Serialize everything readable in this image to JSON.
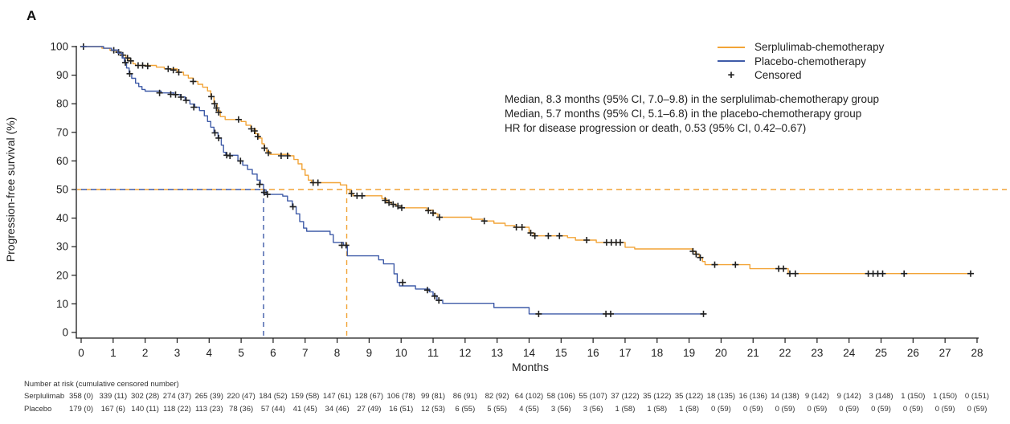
{
  "panel_label": "A",
  "colors": {
    "serplulimab": "#F2A437",
    "placebo": "#3F5BA8",
    "censor": "#1f1f1f",
    "axis": "#1a1a1a"
  },
  "legend": {
    "items": [
      {
        "label": "Serplulimab-chemotherapy",
        "marker": "line",
        "color_key": "serplulimab"
      },
      {
        "label": "Placebo-chemotherapy",
        "marker": "line",
        "color_key": "placebo"
      },
      {
        "label": "Censored",
        "marker": "plus",
        "plus_symbol": "+"
      }
    ]
  },
  "annotations": [
    "Median, 8.3 months (95% CI, 7.0–9.8) in the serplulimab-chemotherapy group",
    "Median, 5.7 months (95% CI, 5.1–6.8) in the placebo-chemotherapy group",
    "HR for disease progression or death, 0.53 (95% CI, 0.42–0.67)"
  ],
  "chart_data": {
    "type": "line",
    "subtype": "kaplan-meier-step",
    "xlabel": "Months",
    "ylabel": "Progression-free survival (%)",
    "xlim": [
      0,
      28
    ],
    "ylim": [
      0,
      100
    ],
    "xticks": [
      0,
      1,
      2,
      3,
      4,
      5,
      6,
      7,
      8,
      9,
      10,
      11,
      12,
      13,
      14,
      15,
      16,
      17,
      18,
      19,
      20,
      21,
      22,
      23,
      24,
      25,
      26,
      27,
      28
    ],
    "yticks": [
      0,
      10,
      20,
      30,
      40,
      50,
      60,
      70,
      80,
      90,
      100
    ],
    "grid": false,
    "legend_position": "top-right",
    "median_lines": {
      "reference_percent": 50,
      "serplulimab_median_months": 8.3,
      "placebo_median_months": 5.7
    },
    "series": [
      {
        "name": "Serplulimab-chemotherapy",
        "color_key": "serplulimab",
        "steps": [
          [
            0,
            100
          ],
          [
            0.65,
            99.4
          ],
          [
            0.9,
            98.7
          ],
          [
            1.1,
            98
          ],
          [
            1.25,
            97
          ],
          [
            1.4,
            96
          ],
          [
            1.5,
            95
          ],
          [
            1.62,
            94
          ],
          [
            1.7,
            93.4
          ],
          [
            2.35,
            92.8
          ],
          [
            2.6,
            92.2
          ],
          [
            3.0,
            91
          ],
          [
            3.2,
            90
          ],
          [
            3.35,
            89
          ],
          [
            3.5,
            87.8
          ],
          [
            3.65,
            86.8
          ],
          [
            3.8,
            85.8
          ],
          [
            3.95,
            84.5
          ],
          [
            4.05,
            82.5
          ],
          [
            4.15,
            80
          ],
          [
            4.25,
            77.5
          ],
          [
            4.35,
            75.5
          ],
          [
            4.5,
            74.5
          ],
          [
            5.0,
            73.8
          ],
          [
            5.15,
            72.5
          ],
          [
            5.3,
            71.2
          ],
          [
            5.45,
            69.5
          ],
          [
            5.55,
            68
          ],
          [
            5.65,
            66
          ],
          [
            5.72,
            64.5
          ],
          [
            5.8,
            63.3
          ],
          [
            5.9,
            62.3
          ],
          [
            6.5,
            61.8
          ],
          [
            6.65,
            60.5
          ],
          [
            6.78,
            59
          ],
          [
            6.9,
            57
          ],
          [
            7.0,
            55
          ],
          [
            7.1,
            53.3
          ],
          [
            7.2,
            52.4
          ],
          [
            8.1,
            51.6
          ],
          [
            8.3,
            50
          ],
          [
            8.4,
            48.6
          ],
          [
            8.5,
            47.8
          ],
          [
            9.4,
            46.8
          ],
          [
            9.55,
            45.6
          ],
          [
            9.7,
            44.8
          ],
          [
            9.85,
            44.2
          ],
          [
            10.0,
            43.6
          ],
          [
            10.8,
            42.8
          ],
          [
            11.0,
            41.5
          ],
          [
            11.15,
            40.3
          ],
          [
            12.2,
            39.6
          ],
          [
            12.55,
            39
          ],
          [
            12.9,
            38.2
          ],
          [
            13.25,
            37.4
          ],
          [
            13.55,
            36.8
          ],
          [
            14.0,
            34.8
          ],
          [
            14.15,
            33.8
          ],
          [
            15.2,
            33.2
          ],
          [
            15.45,
            32.3
          ],
          [
            16.1,
            31.5
          ],
          [
            17.0,
            29.8
          ],
          [
            17.3,
            29.2
          ],
          [
            19.1,
            28.4
          ],
          [
            19.2,
            27.4
          ],
          [
            19.32,
            26.2
          ],
          [
            19.42,
            24.8
          ],
          [
            19.5,
            23.7
          ],
          [
            20.9,
            22.3
          ],
          [
            22.1,
            20.6
          ],
          [
            27.9,
            20.6
          ]
        ],
        "censors": [
          [
            0.07,
            100
          ],
          [
            1.02,
            98.7
          ],
          [
            1.17,
            98
          ],
          [
            1.3,
            97
          ],
          [
            1.45,
            96
          ],
          [
            1.55,
            95
          ],
          [
            1.78,
            93.4
          ],
          [
            1.92,
            93.4
          ],
          [
            2.08,
            93.2
          ],
          [
            2.72,
            92.2
          ],
          [
            2.88,
            91.8
          ],
          [
            3.05,
            91
          ],
          [
            3.5,
            87.8
          ],
          [
            4.07,
            82.5
          ],
          [
            4.17,
            80
          ],
          [
            4.23,
            78.5
          ],
          [
            4.3,
            77
          ],
          [
            4.92,
            74.5
          ],
          [
            5.32,
            71.2
          ],
          [
            5.42,
            70.5
          ],
          [
            5.52,
            68.5
          ],
          [
            5.73,
            64.5
          ],
          [
            5.85,
            62.8
          ],
          [
            6.25,
            61.8
          ],
          [
            6.45,
            61.8
          ],
          [
            7.25,
            52.4
          ],
          [
            7.4,
            52.4
          ],
          [
            8.45,
            48.6
          ],
          [
            8.62,
            47.8
          ],
          [
            8.78,
            47.8
          ],
          [
            9.5,
            46.2
          ],
          [
            9.62,
            45.4
          ],
          [
            9.75,
            44.8
          ],
          [
            9.9,
            44.2
          ],
          [
            10.02,
            43.6
          ],
          [
            10.85,
            42.6
          ],
          [
            11.0,
            41.8
          ],
          [
            11.2,
            40.3
          ],
          [
            12.6,
            39
          ],
          [
            13.6,
            36.8
          ],
          [
            13.78,
            36.8
          ],
          [
            14.05,
            34.8
          ],
          [
            14.18,
            33.8
          ],
          [
            14.6,
            33.8
          ],
          [
            14.95,
            33.8
          ],
          [
            15.8,
            32.3
          ],
          [
            16.42,
            31.5
          ],
          [
            16.57,
            31.5
          ],
          [
            16.72,
            31.5
          ],
          [
            16.85,
            31.5
          ],
          [
            19.12,
            28.4
          ],
          [
            19.22,
            27.4
          ],
          [
            19.35,
            26.2
          ],
          [
            19.8,
            23.7
          ],
          [
            20.45,
            23.7
          ],
          [
            21.8,
            22.3
          ],
          [
            21.95,
            22.3
          ],
          [
            22.15,
            20.6
          ],
          [
            22.32,
            20.6
          ],
          [
            24.6,
            20.6
          ],
          [
            24.75,
            20.6
          ],
          [
            24.9,
            20.6
          ],
          [
            25.05,
            20.6
          ],
          [
            25.72,
            20.6
          ],
          [
            27.8,
            20.6
          ]
        ]
      },
      {
        "name": "Placebo-chemotherapy",
        "color_key": "placebo",
        "steps": [
          [
            0,
            100
          ],
          [
            0.7,
            99.4
          ],
          [
            0.95,
            98.8
          ],
          [
            1.15,
            97.7
          ],
          [
            1.28,
            96
          ],
          [
            1.35,
            94.4
          ],
          [
            1.42,
            92.5
          ],
          [
            1.5,
            90.5
          ],
          [
            1.58,
            88.9
          ],
          [
            1.7,
            87.2
          ],
          [
            1.8,
            86
          ],
          [
            1.9,
            85
          ],
          [
            2.0,
            84.4
          ],
          [
            2.5,
            83.8
          ],
          [
            2.9,
            83.2
          ],
          [
            3.1,
            82.4
          ],
          [
            3.25,
            81.2
          ],
          [
            3.4,
            79.9
          ],
          [
            3.55,
            78.8
          ],
          [
            3.7,
            77.6
          ],
          [
            3.85,
            75.8
          ],
          [
            3.95,
            73.8
          ],
          [
            4.05,
            71.8
          ],
          [
            4.15,
            69.9
          ],
          [
            4.28,
            68
          ],
          [
            4.38,
            65.5
          ],
          [
            4.45,
            63
          ],
          [
            4.52,
            62
          ],
          [
            4.9,
            60
          ],
          [
            5.05,
            58.5
          ],
          [
            5.2,
            57
          ],
          [
            5.35,
            55.4
          ],
          [
            5.5,
            53.3
          ],
          [
            5.6,
            51.8
          ],
          [
            5.7,
            49.9
          ],
          [
            5.78,
            48.3
          ],
          [
            6.3,
            47.7
          ],
          [
            6.45,
            46
          ],
          [
            6.6,
            44
          ],
          [
            6.72,
            41.5
          ],
          [
            6.83,
            38.8
          ],
          [
            6.95,
            36.5
          ],
          [
            7.05,
            35.4
          ],
          [
            7.78,
            34.2
          ],
          [
            7.88,
            31.5
          ],
          [
            8.2,
            30.5
          ],
          [
            8.32,
            26.8
          ],
          [
            9.3,
            25.4
          ],
          [
            9.45,
            24
          ],
          [
            9.78,
            20.5
          ],
          [
            9.88,
            17.5
          ],
          [
            9.95,
            16.3
          ],
          [
            10.45,
            15.2
          ],
          [
            10.88,
            14.2
          ],
          [
            11.0,
            12.9
          ],
          [
            11.12,
            11.3
          ],
          [
            11.3,
            10.2
          ],
          [
            12.9,
            8.7
          ],
          [
            14.0,
            6.5
          ],
          [
            19.5,
            6.5
          ]
        ],
        "censors": [
          [
            1.38,
            94.4
          ],
          [
            1.52,
            90.5
          ],
          [
            2.45,
            83.8
          ],
          [
            2.8,
            83.3
          ],
          [
            2.95,
            83.2
          ],
          [
            3.12,
            82.3
          ],
          [
            3.28,
            81.2
          ],
          [
            3.52,
            78.8
          ],
          [
            4.18,
            69.8
          ],
          [
            4.3,
            68
          ],
          [
            4.55,
            62
          ],
          [
            4.65,
            61.8
          ],
          [
            4.98,
            60
          ],
          [
            5.58,
            51.8
          ],
          [
            5.72,
            49
          ],
          [
            5.82,
            48.3
          ],
          [
            6.62,
            44
          ],
          [
            8.15,
            30.5
          ],
          [
            8.28,
            30.5
          ],
          [
            10.05,
            17.5
          ],
          [
            10.82,
            14.8
          ],
          [
            11.05,
            12.7
          ],
          [
            11.18,
            11.2
          ],
          [
            14.3,
            6.5
          ],
          [
            16.4,
            6.5
          ],
          [
            16.55,
            6.5
          ],
          [
            19.45,
            6.5
          ]
        ]
      }
    ]
  },
  "risk_table": {
    "title": "Number at risk (cumulative censored number)",
    "months": [
      0,
      1,
      2,
      3,
      4,
      5,
      6,
      7,
      8,
      9,
      10,
      11,
      12,
      13,
      14,
      15,
      16,
      17,
      18,
      19,
      20,
      21,
      22,
      23,
      24,
      25,
      26,
      27,
      28
    ],
    "rows": [
      {
        "label": "Serplulimab",
        "values": [
          "358 (0)",
          "339 (11)",
          "302 (28)",
          "274 (37)",
          "265 (39)",
          "220 (47)",
          "184 (52)",
          "159 (58)",
          "147 (61)",
          "128 (67)",
          "106 (78)",
          "99 (81)",
          "86 (91)",
          "82 (92)",
          "64 (102)",
          "58 (106)",
          "55 (107)",
          "37 (122)",
          "35 (122)",
          "35 (122)",
          "18 (135)",
          "16 (136)",
          "14 (138)",
          "9 (142)",
          "9 (142)",
          "3 (148)",
          "1 (150)",
          "1 (150)",
          "0 (151)"
        ]
      },
      {
        "label": "Placebo",
        "values": [
          "179 (0)",
          "167 (6)",
          "140 (11)",
          "118 (22)",
          "113 (23)",
          "78 (36)",
          "57 (44)",
          "41 (45)",
          "34 (46)",
          "27 (49)",
          "16 (51)",
          "12 (53)",
          "6 (55)",
          "5 (55)",
          "4 (55)",
          "3 (56)",
          "3 (56)",
          "1 (58)",
          "1 (58)",
          "1 (58)",
          "0 (59)",
          "0 (59)",
          "0 (59)",
          "0 (59)",
          "0 (59)",
          "0 (59)",
          "0 (59)",
          "0 (59)",
          "0 (59)"
        ]
      }
    ]
  }
}
